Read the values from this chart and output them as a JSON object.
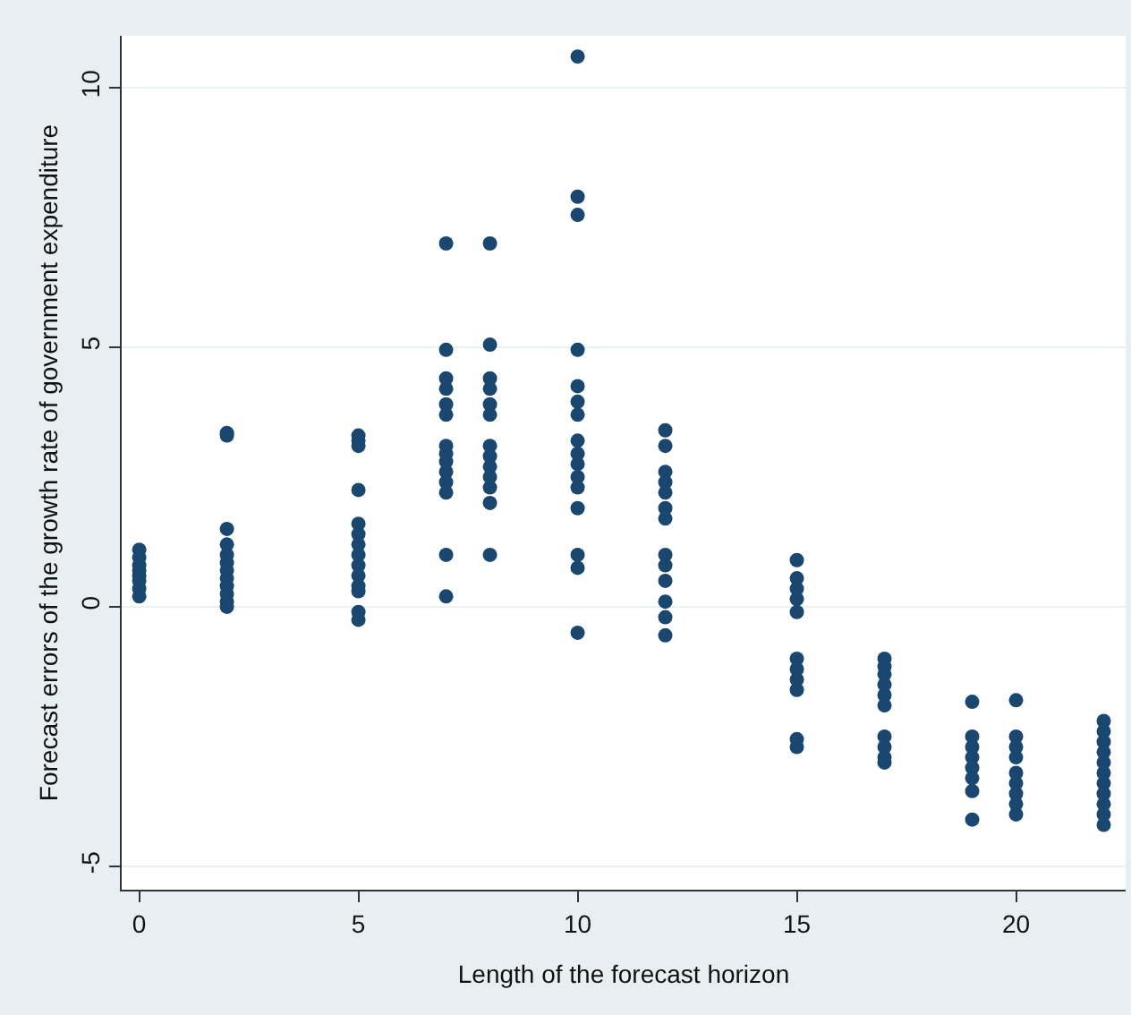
{
  "chart_data": {
    "type": "scatter",
    "xlabel": "Length of the forecast horizon",
    "ylabel": "Forecast errors of the growth rate of government expenditure",
    "xlim": [
      -0.4,
      22.5
    ],
    "xticks": [
      0,
      5,
      10,
      15,
      20
    ],
    "ylim": [
      -5.45,
      11
    ],
    "yticks": [
      -5,
      0,
      5,
      10
    ],
    "grid": "y",
    "marker": "circle",
    "series": [
      {
        "color": "#1a476f",
        "x": [
          0,
          0,
          0,
          0,
          0,
          0,
          0,
          0,
          2,
          2,
          2,
          2,
          2,
          2,
          2,
          2,
          2,
          2,
          2,
          2,
          5,
          5,
          5,
          5,
          5,
          5,
          5,
          5,
          5,
          5,
          5,
          5,
          5,
          5,
          7,
          7,
          7,
          7,
          7,
          7,
          7,
          7,
          7,
          7,
          7,
          7,
          7,
          7,
          8,
          8,
          8,
          8,
          8,
          8,
          8,
          8,
          8,
          8,
          8,
          8,
          8,
          10,
          10,
          10,
          10,
          10,
          10,
          10,
          10,
          10,
          10,
          10,
          10,
          10,
          10,
          10,
          10,
          12,
          12,
          12,
          12,
          12,
          12,
          12,
          12,
          12,
          12,
          12,
          12,
          12,
          15,
          15,
          15,
          15,
          15,
          15,
          15,
          15,
          15,
          15,
          15,
          17,
          17,
          17,
          17,
          17,
          17,
          17,
          17,
          17,
          17,
          19,
          19,
          19,
          19,
          19,
          19,
          19,
          19,
          20,
          20,
          20,
          20,
          20,
          20,
          20,
          20,
          20,
          22,
          22,
          22,
          22,
          22,
          22,
          22,
          22,
          22,
          22,
          22
        ],
        "values": [
          0.2,
          0.35,
          0.5,
          0.6,
          0.7,
          0.8,
          0.95,
          1.1,
          3.35,
          3.3,
          1.5,
          1.2,
          1.0,
          0.85,
          0.7,
          0.55,
          0.4,
          0.25,
          0.1,
          0.0,
          3.3,
          3.2,
          3.1,
          2.25,
          1.6,
          1.4,
          1.2,
          1.0,
          0.8,
          0.6,
          0.4,
          0.3,
          -0.1,
          -0.25,
          7.0,
          4.95,
          4.4,
          4.2,
          3.9,
          3.7,
          3.1,
          2.95,
          2.8,
          2.6,
          2.4,
          2.2,
          1.0,
          0.2,
          7.0,
          5.05,
          4.4,
          4.2,
          3.9,
          3.7,
          3.1,
          2.9,
          2.7,
          2.5,
          2.3,
          2.0,
          1.0,
          10.6,
          7.9,
          7.55,
          4.95,
          4.25,
          3.95,
          3.7,
          3.2,
          2.95,
          2.75,
          2.5,
          2.3,
          1.9,
          1.0,
          0.75,
          -0.5,
          3.4,
          3.1,
          2.6,
          2.4,
          2.2,
          1.9,
          1.7,
          1.0,
          0.8,
          0.5,
          0.1,
          -0.2,
          -0.55,
          0.9,
          0.55,
          0.35,
          0.15,
          -0.1,
          -1.0,
          -1.2,
          -1.4,
          -1.6,
          -2.55,
          -2.7,
          -1.0,
          -1.15,
          -1.3,
          -1.5,
          -1.7,
          -1.9,
          -2.5,
          -2.7,
          -2.9,
          -3.0,
          -1.83,
          -2.5,
          -2.7,
          -2.9,
          -3.1,
          -3.3,
          -3.55,
          -4.1,
          -1.8,
          -2.5,
          -2.7,
          -2.9,
          -3.2,
          -3.4,
          -3.6,
          -3.8,
          -4.0,
          -2.2,
          -2.4,
          -2.6,
          -2.8,
          -3.0,
          -3.2,
          -3.4,
          -3.6,
          -3.8,
          -4.0,
          -4.2
        ]
      }
    ]
  }
}
